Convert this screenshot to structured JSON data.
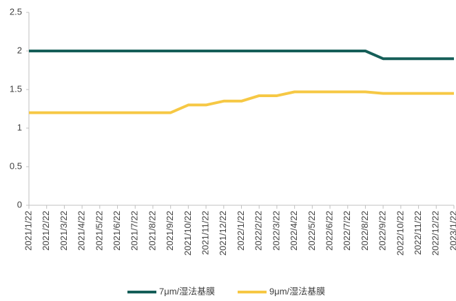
{
  "chart_data": {
    "type": "line",
    "categories": [
      "2021/1/22",
      "2021/2/22",
      "2021/3/22",
      "2021/4/22",
      "2021/5/22",
      "2021/6/22",
      "2021/7/22",
      "2021/8/22",
      "2021/9/22",
      "2021/10/22",
      "2021/11/22",
      "2021/12/22",
      "2022/1/22",
      "2022/2/22",
      "2022/3/22",
      "2022/4/22",
      "2022/5/22",
      "2022/6/22",
      "2022/7/22",
      "2022/8/22",
      "2022/9/22",
      "2022/10/22",
      "2022/11/22",
      "2022/12/22",
      "2023/1/22"
    ],
    "series": [
      {
        "name": "7μm/湿法基膜",
        "color": "#155e58",
        "values": [
          2,
          2,
          2,
          2,
          2,
          2,
          2,
          2,
          2,
          2,
          2,
          2,
          2,
          2,
          2,
          2,
          2,
          2,
          2,
          2,
          1.9,
          1.9,
          1.9,
          1.9,
          1.9
        ]
      },
      {
        "name": "9μm/湿法基膜",
        "color": "#f6c844",
        "values": [
          1.2,
          1.2,
          1.2,
          1.2,
          1.2,
          1.2,
          1.2,
          1.2,
          1.2,
          1.3,
          1.3,
          1.35,
          1.35,
          1.42,
          1.42,
          1.47,
          1.47,
          1.47,
          1.47,
          1.47,
          1.45,
          1.45,
          1.45,
          1.45,
          1.45
        ]
      }
    ],
    "ylim": [
      0,
      2.5
    ],
    "yticks": [
      0,
      0.5,
      1,
      1.5,
      2,
      2.5
    ],
    "grid": false,
    "legend": "bottom"
  }
}
